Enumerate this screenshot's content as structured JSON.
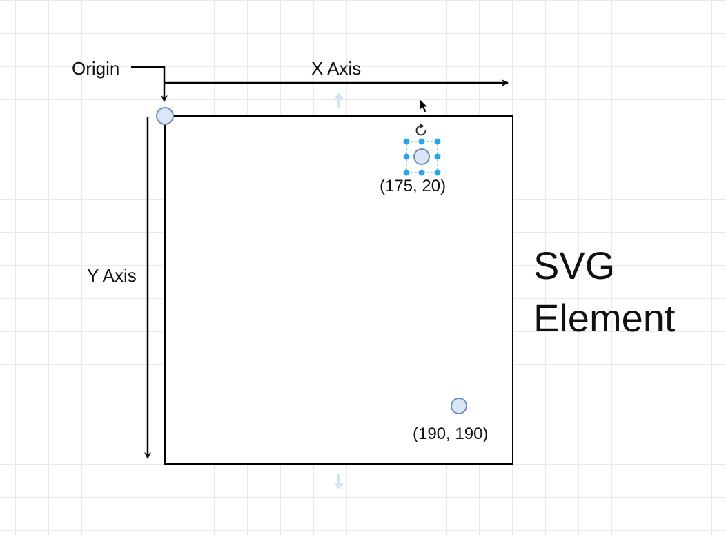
{
  "labels": {
    "origin": "Origin",
    "x_axis": "X Axis",
    "y_axis": "Y Axis",
    "svg_line1": "SVG",
    "svg_line2": "Element"
  },
  "points": [
    {
      "label": "(175, 20)",
      "selected": true
    },
    {
      "label": "(190, 190)",
      "selected": false
    }
  ],
  "colors": {
    "point_fill": "#dbe6f7",
    "point_stroke": "#6c8ebf",
    "selection_handle": "#29a3ef",
    "line": "#000000"
  }
}
